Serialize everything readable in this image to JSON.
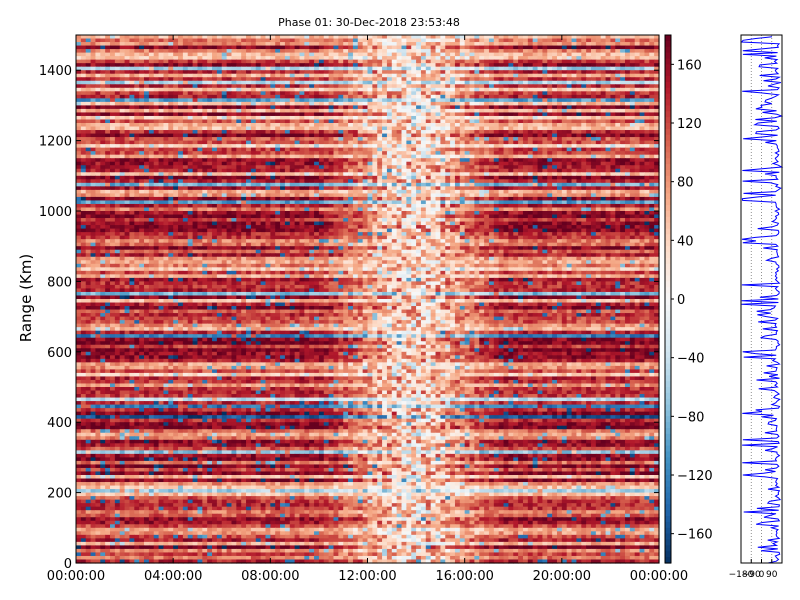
{
  "chart_data": [
    {
      "type": "heatmap",
      "title": "Phase 01: 30-Dec-2018 23:53:48",
      "xlabel": "",
      "ylabel": "Range (Km)",
      "x_tick_labels": [
        "00:00:00",
        "04:00:00",
        "08:00:00",
        "12:00:00",
        "16:00:00",
        "20:00:00",
        "00:00:00"
      ],
      "y_ticks": [
        0,
        200,
        400,
        600,
        800,
        1000,
        1200,
        1400
      ],
      "ylim": [
        0,
        1500
      ],
      "colormap": "RdBu_r",
      "colorbar": {
        "ticks": [
          160,
          120,
          80,
          40,
          0,
          -40,
          -80,
          -120,
          -160
        ],
        "tick_labels": [
          "160",
          "120",
          "80",
          "40",
          "0",
          "−40",
          "−80",
          "−120",
          "−160"
        ],
        "range": [
          -180,
          180
        ],
        "colors": [
          "#053061",
          "#2166ac",
          "#4393c3",
          "#92c5de",
          "#d1e5f0",
          "#f7f7f7",
          "#fddbc7",
          "#f4a582",
          "#d6604d",
          "#b2182b",
          "#67001f"
        ]
      }
    },
    {
      "type": "line",
      "tick_labels": [
        "−180",
        "−90",
        "0",
        "90"
      ],
      "xlim": [
        -180,
        180
      ],
      "ylim": [
        0,
        1500
      ],
      "line_color": "#0000ff"
    }
  ]
}
